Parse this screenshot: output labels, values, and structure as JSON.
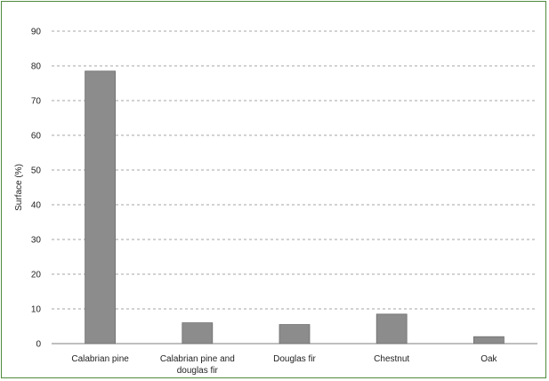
{
  "chart_data": {
    "type": "bar",
    "categories": [
      "Calabrian pine",
      "Calabrian pine and douglas fir",
      "Douglas fir",
      "Chestnut",
      "Oak"
    ],
    "category_lines": [
      [
        "Calabrian pine"
      ],
      [
        "Calabrian pine and",
        "douglas fir"
      ],
      [
        "Douglas fir"
      ],
      [
        "Chestnut"
      ],
      [
        "Oak"
      ]
    ],
    "values": [
      78.5,
      6,
      5.5,
      8.5,
      2
    ],
    "ylabel": "Surface (%)",
    "ylim": [
      0,
      90
    ],
    "yticks": [
      0,
      10,
      20,
      30,
      40,
      50,
      60,
      70,
      80,
      90
    ],
    "grid": true,
    "colors": {
      "bar": "#8c8c8c",
      "bar_edge": "#6f6f6f",
      "grid": "#a6a6a6",
      "axis": "#7f7f7f",
      "frame": "#4f8a3c"
    }
  }
}
